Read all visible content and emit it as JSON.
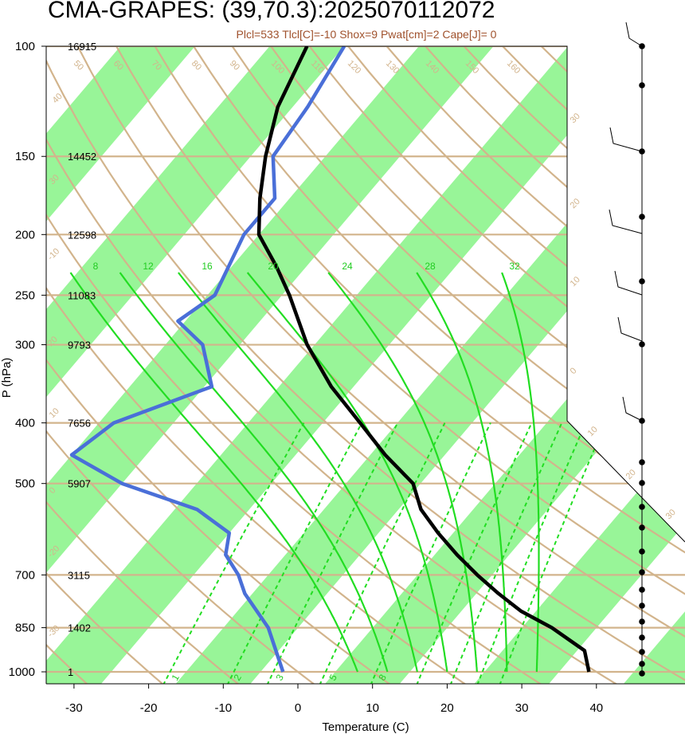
{
  "title": "CMA-GRAPES: (39,70.3):2025070112072",
  "subtitle": "Plcl=533 Tlcl[C]=-10 Shox=9 Pwat[cm]=2 Cape[J]= 0",
  "chart_data": {
    "type": "skew-t log-p sounding",
    "xlabel": "Temperature (C)",
    "ylabel": "P (hPa)",
    "x_ticks": [
      -30,
      -20,
      -10,
      0,
      10,
      20,
      30,
      40
    ],
    "y_ticks": [
      100,
      150,
      200,
      250,
      300,
      400,
      500,
      700,
      850,
      1000
    ],
    "pressure_levels": [
      1000,
      850,
      700,
      500,
      400,
      300,
      250,
      200,
      150,
      100
    ],
    "heights": [
      "1",
      "1402",
      "3115",
      "5907",
      "7656",
      "9793",
      "11083",
      "12598",
      "14452",
      "16915"
    ],
    "temperature_profile": [
      {
        "p": 1000,
        "t": 39
      },
      {
        "p": 925,
        "t": 36
      },
      {
        "p": 850,
        "t": 29
      },
      {
        "p": 800,
        "t": 23
      },
      {
        "p": 750,
        "t": 18
      },
      {
        "p": 700,
        "t": 13
      },
      {
        "p": 650,
        "t": 8
      },
      {
        "p": 600,
        "t": 3
      },
      {
        "p": 550,
        "t": -2
      },
      {
        "p": 500,
        "t": -6
      },
      {
        "p": 450,
        "t": -13
      },
      {
        "p": 400,
        "t": -20
      },
      {
        "p": 350,
        "t": -28
      },
      {
        "p": 300,
        "t": -36
      },
      {
        "p": 250,
        "t": -44
      },
      {
        "p": 225,
        "t": -49
      },
      {
        "p": 200,
        "t": -55
      },
      {
        "p": 175,
        "t": -59
      },
      {
        "p": 150,
        "t": -63
      },
      {
        "p": 125,
        "t": -67
      },
      {
        "p": 100,
        "t": -70
      }
    ],
    "dewpoint_profile": [
      {
        "p": 1000,
        "t": -2
      },
      {
        "p": 850,
        "t": -9
      },
      {
        "p": 750,
        "t": -16
      },
      {
        "p": 700,
        "t": -19
      },
      {
        "p": 650,
        "t": -23
      },
      {
        "p": 600,
        "t": -25
      },
      {
        "p": 550,
        "t": -32
      },
      {
        "p": 500,
        "t": -45
      },
      {
        "p": 450,
        "t": -55
      },
      {
        "p": 400,
        "t": -53
      },
      {
        "p": 350,
        "t": -44
      },
      {
        "p": 300,
        "t": -50
      },
      {
        "p": 275,
        "t": -56
      },
      {
        "p": 250,
        "t": -54
      },
      {
        "p": 200,
        "t": -57
      },
      {
        "p": 175,
        "t": -57
      },
      {
        "p": 150,
        "t": -62
      },
      {
        "p": 125,
        "t": -63
      },
      {
        "p": 100,
        "t": -65
      }
    ],
    "mixing_ratio_labels": [
      "1",
      "2",
      "3",
      "5",
      "8"
    ],
    "moist_adiabat_labels": [
      "8",
      "12",
      "16",
      "20",
      "24",
      "28",
      "32"
    ],
    "dry_adiabat_labels": [
      "50",
      "60",
      "70",
      "80",
      "90",
      "100",
      "110",
      "120",
      "130",
      "140",
      "150",
      "160"
    ],
    "isotherm_labels": [
      "30",
      "20",
      "10",
      "0",
      "10",
      "20",
      "30",
      "-10",
      "-20",
      "-30",
      "40",
      "30",
      "20",
      "10",
      "0"
    ],
    "wind_profile_present": true,
    "colors": {
      "temperature": "#000000",
      "dewpoint": "#4a6fd8",
      "isotherm_band": "#98f598",
      "dry_adiabat": "#d2b48c",
      "moist_adiabat": "#22dd22",
      "mixing_ratio": "#22dd22"
    }
  }
}
